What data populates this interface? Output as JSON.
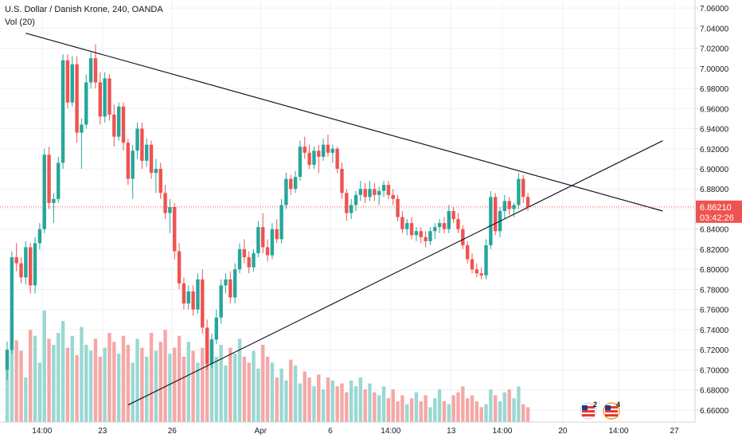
{
  "header": {
    "title": "U.S. Dollar / Danish Krone, 240, OANDA",
    "indicator": "Vol (20)"
  },
  "price_tag": {
    "price": "6.86210",
    "countdown": "03:42:26"
  },
  "event_badges": [
    {
      "count": "2"
    },
    {
      "count": "4"
    }
  ],
  "colors": {
    "up": "#26a69a",
    "down": "#ef5350",
    "vol_up": "#9ad8d3",
    "vol_down": "#f5a8a6",
    "grid": "#eef1f5",
    "trendline": "#131722",
    "axis_text": "#131722"
  },
  "chart_data": {
    "type": "candlestick",
    "y_ticks": [
      "7.06000",
      "7.04000",
      "7.02000",
      "7.00000",
      "6.98000",
      "6.96000",
      "6.94000",
      "6.92000",
      "6.90000",
      "6.88000",
      "6.86000",
      "6.84000",
      "6.82000",
      "6.80000",
      "6.78000",
      "6.76000",
      "6.74000",
      "6.72000",
      "6.70000",
      "6.68000",
      "6.66000"
    ],
    "ylim": [
      6.648,
      7.068
    ],
    "x_ticks": [
      {
        "label": "14:00",
        "i": 7.5
      },
      {
        "label": "23",
        "i": 20.5
      },
      {
        "label": "26",
        "i": 35.5
      },
      {
        "label": "Apr",
        "i": 54.5
      },
      {
        "label": "6",
        "i": 69.5
      },
      {
        "label": "14:00",
        "i": 82.5
      },
      {
        "label": "13",
        "i": 95.5
      },
      {
        "label": "14:00",
        "i": 106.5
      },
      {
        "label": "20",
        "i": 119.5
      },
      {
        "label": "14:00",
        "i": 131.5
      },
      {
        "label": "27",
        "i": 143.5
      }
    ],
    "ohlc": [
      [
        6.7,
        6.728,
        6.69,
        6.72
      ],
      [
        6.72,
        6.818,
        6.716,
        6.812
      ],
      [
        6.812,
        6.826,
        6.798,
        6.806
      ],
      [
        6.806,
        6.812,
        6.786,
        6.792
      ],
      [
        6.792,
        6.828,
        6.785,
        6.822
      ],
      [
        6.822,
        6.826,
        6.776,
        6.784
      ],
      [
        6.784,
        6.832,
        6.776,
        6.826
      ],
      [
        6.826,
        6.846,
        6.82,
        6.84
      ],
      [
        6.84,
        6.92,
        6.836,
        6.914
      ],
      [
        6.914,
        6.922,
        6.86,
        6.866
      ],
      [
        6.866,
        6.876,
        6.846,
        6.87
      ],
      [
        6.87,
        6.912,
        6.866,
        6.906
      ],
      [
        6.906,
        7.014,
        6.9,
        7.008
      ],
      [
        7.008,
        7.014,
        6.96,
        6.966
      ],
      [
        6.966,
        7.012,
        6.962,
        7.004
      ],
      [
        7.004,
        7.012,
        6.926,
        6.936
      ],
      [
        6.936,
        6.95,
        6.9,
        6.944
      ],
      [
        6.944,
        6.994,
        6.94,
        6.986
      ],
      [
        6.986,
        7.016,
        6.98,
        7.01
      ],
      [
        7.01,
        7.024,
        6.98,
        6.986
      ],
      [
        6.986,
        6.996,
        6.944,
        6.952
      ],
      [
        6.952,
        6.996,
        6.946,
        6.99
      ],
      [
        6.99,
        6.994,
        6.948,
        6.954
      ],
      [
        6.954,
        6.964,
        6.922,
        6.932
      ],
      [
        6.932,
        6.966,
        6.928,
        6.962
      ],
      [
        6.962,
        6.966,
        6.918,
        6.926
      ],
      [
        6.926,
        6.93,
        6.884,
        6.89
      ],
      [
        6.89,
        6.924,
        6.87,
        6.918
      ],
      [
        6.918,
        6.946,
        6.91,
        6.94
      ],
      [
        6.94,
        6.946,
        6.9,
        6.908
      ],
      [
        6.908,
        6.93,
        6.902,
        6.924
      ],
      [
        6.924,
        6.928,
        6.89,
        6.896
      ],
      [
        6.896,
        6.91,
        6.876,
        6.9
      ],
      [
        6.9,
        6.906,
        6.87,
        6.876
      ],
      [
        6.876,
        6.884,
        6.85,
        6.856
      ],
      [
        6.856,
        6.87,
        6.836,
        6.862
      ],
      [
        6.862,
        6.866,
        6.81,
        6.818
      ],
      [
        6.818,
        6.826,
        6.78,
        6.786
      ],
      [
        6.786,
        6.792,
        6.76,
        6.766
      ],
      [
        6.766,
        6.784,
        6.76,
        6.778
      ],
      [
        6.778,
        6.784,
        6.754,
        6.76
      ],
      [
        6.76,
        6.796,
        6.756,
        6.79
      ],
      [
        6.79,
        6.8,
        6.736,
        6.742
      ],
      [
        6.742,
        6.75,
        6.7,
        6.706
      ],
      [
        6.706,
        6.736,
        6.702,
        6.73
      ],
      [
        6.73,
        6.76,
        6.726,
        6.752
      ],
      [
        6.752,
        6.79,
        6.746,
        6.784
      ],
      [
        6.784,
        6.796,
        6.776,
        6.79
      ],
      [
        6.79,
        6.798,
        6.766,
        6.772
      ],
      [
        6.772,
        6.806,
        6.766,
        6.8
      ],
      [
        6.8,
        6.826,
        6.796,
        6.82
      ],
      [
        6.82,
        6.83,
        6.806,
        6.812
      ],
      [
        6.812,
        6.818,
        6.796,
        6.802
      ],
      [
        6.802,
        6.82,
        6.798,
        6.816
      ],
      [
        6.816,
        6.848,
        6.812,
        6.842
      ],
      [
        6.842,
        6.856,
        6.816,
        6.822
      ],
      [
        6.822,
        6.83,
        6.808,
        6.814
      ],
      [
        6.814,
        6.846,
        6.81,
        6.84
      ],
      [
        6.84,
        6.85,
        6.826,
        6.83
      ],
      [
        6.83,
        6.87,
        6.826,
        6.864
      ],
      [
        6.864,
        6.896,
        6.86,
        6.89
      ],
      [
        6.89,
        6.894,
        6.874,
        6.88
      ],
      [
        6.88,
        6.898,
        6.876,
        6.892
      ],
      [
        6.892,
        6.928,
        6.888,
        6.922
      ],
      [
        6.922,
        6.932,
        6.91,
        6.916
      ],
      [
        6.916,
        6.924,
        6.9,
        6.904
      ],
      [
        6.904,
        6.922,
        6.9,
        6.918
      ],
      [
        6.918,
        6.924,
        6.896,
        6.912
      ],
      [
        6.912,
        6.93,
        6.908,
        6.924
      ],
      [
        6.924,
        6.934,
        6.912,
        6.916
      ],
      [
        6.916,
        6.924,
        6.906,
        6.92
      ],
      [
        6.92,
        6.922,
        6.896,
        6.9
      ],
      [
        6.9,
        6.906,
        6.87,
        6.876
      ],
      [
        6.876,
        6.88,
        6.848,
        6.856
      ],
      [
        6.856,
        6.87,
        6.85,
        6.864
      ],
      [
        6.864,
        6.878,
        6.858,
        6.874
      ],
      [
        6.874,
        6.888,
        6.868,
        6.88
      ],
      [
        6.88,
        6.886,
        6.866,
        6.872
      ],
      [
        6.872,
        6.888,
        6.868,
        6.88
      ],
      [
        6.88,
        6.886,
        6.868,
        6.874
      ],
      [
        6.874,
        6.882,
        6.864,
        6.878
      ],
      [
        6.878,
        6.888,
        6.872,
        6.884
      ],
      [
        6.884,
        6.888,
        6.87,
        6.874
      ],
      [
        6.874,
        6.88,
        6.864,
        6.87
      ],
      [
        6.87,
        6.874,
        6.848,
        6.852
      ],
      [
        6.852,
        6.858,
        6.836,
        6.84
      ],
      [
        6.84,
        6.85,
        6.834,
        6.846
      ],
      [
        6.846,
        6.852,
        6.83,
        6.834
      ],
      [
        6.834,
        6.842,
        6.828,
        6.838
      ],
      [
        6.838,
        6.842,
        6.826,
        6.832
      ],
      [
        6.832,
        6.838,
        6.822,
        6.828
      ],
      [
        6.828,
        6.842,
        6.824,
        6.838
      ],
      [
        6.838,
        6.846,
        6.83,
        6.842
      ],
      [
        6.842,
        6.85,
        6.836,
        6.846
      ],
      [
        6.846,
        6.852,
        6.836,
        6.84
      ],
      [
        6.84,
        6.864,
        6.836,
        6.858
      ],
      [
        6.858,
        6.862,
        6.846,
        6.85
      ],
      [
        6.85,
        6.856,
        6.836,
        6.84
      ],
      [
        6.84,
        6.844,
        6.82,
        6.824
      ],
      [
        6.824,
        6.828,
        6.806,
        6.81
      ],
      [
        6.81,
        6.816,
        6.796,
        6.8
      ],
      [
        6.8,
        6.806,
        6.792,
        6.796
      ],
      [
        6.796,
        6.802,
        6.79,
        6.794
      ],
      [
        6.794,
        6.83,
        6.79,
        6.824
      ],
      [
        6.824,
        6.878,
        6.82,
        6.872
      ],
      [
        6.872,
        6.876,
        6.834,
        6.838
      ],
      [
        6.838,
        6.862,
        6.832,
        6.858
      ],
      [
        6.858,
        6.874,
        6.85,
        6.868
      ],
      [
        6.868,
        6.872,
        6.854,
        6.86
      ],
      [
        6.86,
        6.866,
        6.852,
        6.864
      ],
      [
        6.864,
        6.896,
        6.86,
        6.89
      ],
      [
        6.89,
        6.894,
        6.866,
        6.872
      ],
      [
        6.872,
        6.876,
        6.858,
        6.862
      ]
    ],
    "volume": [
      42,
      70,
      55,
      48,
      30,
      62,
      58,
      40,
      75,
      56,
      52,
      60,
      68,
      50,
      58,
      45,
      64,
      52,
      48,
      56,
      44,
      50,
      60,
      54,
      46,
      58,
      52,
      40,
      56,
      50,
      44,
      60,
      48,
      54,
      62,
      46,
      50,
      58,
      44,
      54,
      48,
      40,
      50,
      62,
      56,
      44,
      52,
      38,
      50,
      46,
      56,
      44,
      40,
      48,
      36,
      52,
      44,
      40,
      30,
      36,
      28,
      42,
      38,
      26,
      34,
      30,
      24,
      32,
      22,
      30,
      28,
      24,
      26,
      20,
      28,
      24,
      30,
      22,
      26,
      20,
      18,
      24,
      16,
      22,
      14,
      18,
      12,
      16,
      20,
      14,
      18,
      10,
      16,
      22,
      14,
      12,
      18,
      20,
      24,
      16,
      18,
      14,
      10,
      12,
      22,
      18,
      14,
      20,
      22,
      16,
      24,
      12,
      10
    ],
    "trendlines": [
      {
        "i0": 4,
        "p0": 7.035,
        "i1": 141,
        "p1": 6.858
      },
      {
        "i0": 26,
        "p0": 6.665,
        "i1": 141,
        "p1": 6.928
      }
    ],
    "price_line": 6.8621
  }
}
